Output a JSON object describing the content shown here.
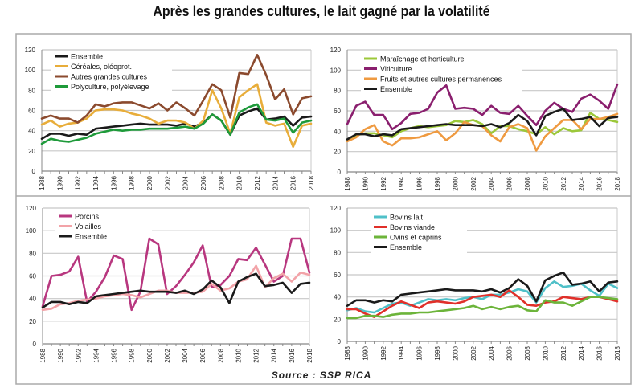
{
  "title": "Après les grandes cultures, le lait gagné par la volatilité",
  "source": "Source : SSP RICA",
  "chart_data": [
    {
      "type": "line",
      "x": [
        1988,
        1989,
        1990,
        1991,
        1992,
        1993,
        1994,
        1995,
        1996,
        1997,
        1998,
        1999,
        2000,
        2001,
        2002,
        2003,
        2004,
        2005,
        2006,
        2007,
        2008,
        2009,
        2010,
        2011,
        2012,
        2013,
        2014,
        2015,
        2016,
        2017,
        2018
      ],
      "xticks": [
        "1988",
        "1990",
        "1992",
        "1994",
        "1996",
        "1998",
        "2000",
        "2002",
        "2004",
        "2006",
        "2008",
        "2010",
        "2012",
        "2014",
        "2016",
        "2018"
      ],
      "yticks": [
        "0",
        "20",
        "40",
        "60",
        "80",
        "100",
        "120"
      ],
      "ylim": [
        0,
        120
      ],
      "grid": true,
      "legend": "top-left",
      "series": [
        {
          "name": "Ensemble",
          "color": "#1a1a1a",
          "values": [
            32,
            37,
            37,
            35,
            37,
            36,
            42,
            43,
            44,
            45,
            46,
            47,
            46,
            46,
            46,
            45,
            47,
            44,
            48,
            56,
            50,
            36,
            55,
            59,
            62,
            51,
            52,
            54,
            45,
            53,
            54
          ]
        },
        {
          "name": "Céréales, oléoprot.",
          "color": "#e8ad3a",
          "values": [
            46,
            50,
            44,
            47,
            48,
            52,
            60,
            61,
            61,
            60,
            57,
            55,
            52,
            47,
            50,
            50,
            48,
            42,
            50,
            80,
            62,
            37,
            73,
            80,
            86,
            48,
            45,
            47,
            24,
            45,
            47
          ]
        },
        {
          "name": "Autres grandes cultures",
          "color": "#8b4a2e",
          "values": [
            52,
            55,
            52,
            52,
            48,
            55,
            66,
            64,
            67,
            68,
            68,
            65,
            62,
            67,
            60,
            68,
            62,
            55,
            70,
            86,
            80,
            53,
            97,
            96,
            115,
            95,
            71,
            81,
            56,
            72,
            74
          ]
        },
        {
          "name": "Polyculture, polyélevage",
          "color": "#1e9a3a",
          "values": [
            27,
            32,
            30,
            29,
            31,
            33,
            37,
            39,
            41,
            40,
            41,
            41,
            42,
            42,
            42,
            43,
            44,
            42,
            47,
            56,
            50,
            36,
            58,
            63,
            66,
            51,
            50,
            52,
            38,
            48,
            50
          ]
        }
      ]
    },
    {
      "type": "line",
      "x": [
        1988,
        1989,
        1990,
        1991,
        1992,
        1993,
        1994,
        1995,
        1996,
        1997,
        1998,
        1999,
        2000,
        2001,
        2002,
        2003,
        2004,
        2005,
        2006,
        2007,
        2008,
        2009,
        2010,
        2011,
        2012,
        2013,
        2014,
        2015,
        2016,
        2017,
        2018
      ],
      "xticks": [
        "1988",
        "1990",
        "1992",
        "1994",
        "1996",
        "1998",
        "2000",
        "2002",
        "2004",
        "2006",
        "2008",
        "2010",
        "2012",
        "2014",
        "2016",
        "2018"
      ],
      "yticks": [
        "0",
        "20",
        "40",
        "60",
        "80",
        "100",
        "120"
      ],
      "ylim": [
        0,
        120
      ],
      "grid": true,
      "legend": "top-left",
      "series": [
        {
          "name": "Maraîchage et horticulture",
          "color": "#9cc83a",
          "values": [
            32,
            36,
            38,
            38,
            36,
            34,
            40,
            43,
            45,
            44,
            45,
            46,
            50,
            49,
            51,
            47,
            38,
            45,
            45,
            42,
            40,
            37,
            44,
            37,
            43,
            40,
            41,
            58,
            52,
            51,
            49
          ]
        },
        {
          "name": "Viticulture",
          "color": "#8a1f6e",
          "values": [
            47,
            65,
            69,
            56,
            56,
            42,
            48,
            57,
            58,
            62,
            78,
            85,
            62,
            63,
            62,
            56,
            65,
            58,
            57,
            65,
            55,
            46,
            60,
            68,
            62,
            59,
            72,
            76,
            70,
            62,
            86
          ]
        },
        {
          "name": "Fruits et autres cultures permanences",
          "color": "#ef9a40",
          "values": [
            30,
            34,
            42,
            46,
            30,
            26,
            33,
            33,
            34,
            37,
            40,
            31,
            38,
            49,
            46,
            45,
            36,
            30,
            44,
            47,
            43,
            21,
            35,
            43,
            51,
            51,
            42,
            52,
            52,
            54,
            57
          ]
        },
        {
          "name": "Ensemble",
          "color": "#1a1a1a",
          "values": [
            32,
            37,
            37,
            35,
            37,
            36,
            42,
            43,
            44,
            45,
            46,
            47,
            46,
            46,
            46,
            45,
            47,
            44,
            48,
            56,
            50,
            36,
            55,
            59,
            62,
            51,
            52,
            54,
            45,
            53,
            54
          ]
        }
      ]
    },
    {
      "type": "line",
      "x": [
        1988,
        1989,
        1990,
        1991,
        1992,
        1993,
        1994,
        1995,
        1996,
        1997,
        1998,
        1999,
        2000,
        2001,
        2002,
        2003,
        2004,
        2005,
        2006,
        2007,
        2008,
        2009,
        2010,
        2011,
        2012,
        2013,
        2014,
        2015,
        2016,
        2017,
        2018
      ],
      "xticks": [
        "1988",
        "1990",
        "1992",
        "1994",
        "1996",
        "1998",
        "2000",
        "2002",
        "2004",
        "2006",
        "2008",
        "2010",
        "2012",
        "2014",
        "2016",
        "2018"
      ],
      "yticks": [
        "0",
        "20",
        "40",
        "60",
        "80",
        "100",
        "120"
      ],
      "ylim": [
        0,
        120
      ],
      "grid": true,
      "legend": "top-left",
      "series": [
        {
          "name": "Porcins",
          "color": "#b8377f",
          "values": [
            33,
            60,
            61,
            64,
            77,
            37,
            46,
            59,
            78,
            75,
            30,
            46,
            93,
            88,
            44,
            51,
            61,
            72,
            87,
            50,
            52,
            60,
            75,
            74,
            85,
            70,
            55,
            60,
            93,
            93,
            63
          ]
        },
        {
          "name": "Volailles",
          "color": "#f2a3a8",
          "values": [
            30,
            31,
            35,
            36,
            38,
            39,
            40,
            42,
            43,
            44,
            43,
            41,
            44,
            47,
            47,
            45,
            45,
            45,
            46,
            53,
            47,
            49,
            55,
            57,
            69,
            50,
            58,
            62,
            55,
            63,
            61
          ]
        },
        {
          "name": "Ensemble",
          "color": "#1a1a1a",
          "values": [
            32,
            37,
            37,
            35,
            37,
            36,
            42,
            43,
            44,
            45,
            46,
            47,
            46,
            46,
            46,
            45,
            47,
            44,
            48,
            56,
            50,
            36,
            55,
            59,
            62,
            51,
            52,
            54,
            45,
            53,
            54
          ]
        }
      ]
    },
    {
      "type": "line",
      "x": [
        1988,
        1989,
        1990,
        1991,
        1992,
        1993,
        1994,
        1995,
        1996,
        1997,
        1998,
        1999,
        2000,
        2001,
        2002,
        2003,
        2004,
        2005,
        2006,
        2007,
        2008,
        2009,
        2010,
        2011,
        2012,
        2013,
        2014,
        2015,
        2016,
        2017,
        2018
      ],
      "xticks": [
        "1988",
        "1990",
        "1992",
        "1994",
        "1996",
        "1998",
        "2000",
        "2002",
        "2004",
        "2006",
        "2008",
        "2010",
        "2012",
        "2014",
        "2016",
        "2018"
      ],
      "yticks": [
        "0",
        "20",
        "40",
        "60",
        "80",
        "100",
        "120"
      ],
      "ylim": [
        0,
        120
      ],
      "grid": true,
      "legend": "top-left",
      "series": [
        {
          "name": "Bovins lait",
          "color": "#4fc0c8",
          "values": [
            28,
            30,
            27,
            26,
            30,
            34,
            35,
            32,
            35,
            38,
            37,
            38,
            37,
            39,
            40,
            38,
            42,
            42,
            44,
            47,
            45,
            35,
            48,
            54,
            49,
            50,
            52,
            46,
            41,
            52,
            48
          ]
        },
        {
          "name": "Bovins viande",
          "color": "#e0302a",
          "values": [
            29,
            29,
            25,
            22,
            27,
            32,
            36,
            33,
            30,
            35,
            36,
            35,
            34,
            36,
            40,
            41,
            42,
            40,
            46,
            40,
            33,
            32,
            35,
            36,
            40,
            39,
            38,
            40,
            40,
            38,
            36
          ]
        },
        {
          "name": "Ovins et caprins",
          "color": "#6cb43a",
          "values": [
            21,
            21,
            23,
            23,
            22,
            24,
            25,
            25,
            26,
            26,
            27,
            28,
            29,
            30,
            32,
            29,
            31,
            29,
            31,
            32,
            28,
            27,
            37,
            35,
            35,
            32,
            36,
            40,
            40,
            39,
            38
          ]
        },
        {
          "name": "Ensemble",
          "color": "#1a1a1a",
          "values": [
            32,
            37,
            37,
            35,
            37,
            36,
            42,
            43,
            44,
            45,
            46,
            47,
            46,
            46,
            46,
            45,
            47,
            44,
            48,
            56,
            50,
            36,
            55,
            59,
            62,
            51,
            52,
            54,
            45,
            53,
            54
          ]
        }
      ]
    }
  ]
}
